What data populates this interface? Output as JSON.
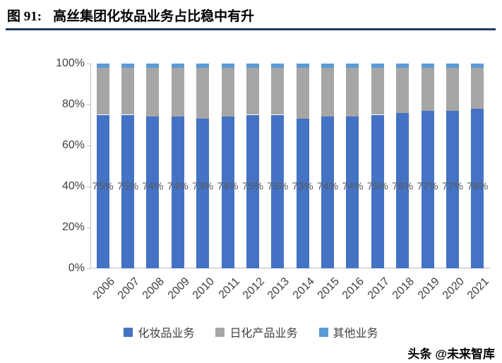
{
  "header": {
    "figure_label": "图 91:",
    "title": "高丝集团化妆品业务占比稳中有升",
    "underline_color": "#1F3864"
  },
  "chart_data": {
    "type": "bar",
    "subtype": "stacked-100-percent",
    "title": "高丝集团化妆品业务占比稳中有升",
    "xlabel": "",
    "ylabel": "",
    "ylim": [
      0,
      100
    ],
    "grid": false,
    "legend_position": "bottom",
    "categories": [
      "2006",
      "2007",
      "2008",
      "2009",
      "2010",
      "2011",
      "2012",
      "2013",
      "2014",
      "2015",
      "2016",
      "2017",
      "2018",
      "2019",
      "2020",
      "2021"
    ],
    "series": [
      {
        "name": "化妆品业务",
        "color": "#4472C4",
        "values": [
          75,
          75,
          74,
          74,
          73,
          74,
          75,
          75,
          73,
          74,
          74,
          75,
          76,
          77,
          77,
          78
        ]
      },
      {
        "name": "日化产品业务",
        "color": "#A6A6A6",
        "values": [
          23,
          23,
          24,
          24,
          25,
          24,
          23,
          23,
          25,
          24,
          24,
          23,
          22,
          21,
          21,
          20
        ]
      },
      {
        "name": "其他业务",
        "color": "#5B9BD5",
        "values": [
          2,
          2,
          2,
          2,
          2,
          2,
          2,
          2,
          2,
          2,
          2,
          2,
          2,
          2,
          2,
          2
        ]
      }
    ],
    "bar_labels": [
      "75%",
      "75%",
      "74%",
      "74%",
      "73%",
      "74%",
      "75%",
      "75%",
      "73%",
      "74%",
      "74%",
      "75%",
      "76%",
      "77%",
      "77%",
      "78%"
    ],
    "bar_label_value_position": 40,
    "y_ticks": [
      {
        "value": 0,
        "label": "0%"
      },
      {
        "value": 20,
        "label": "20%"
      },
      {
        "value": 40,
        "label": "40%"
      },
      {
        "value": 60,
        "label": "60%"
      },
      {
        "value": 80,
        "label": "80%"
      },
      {
        "value": 100,
        "label": "100%"
      }
    ]
  },
  "watermark": {
    "platform": "头条",
    "account": "@未来智库"
  }
}
